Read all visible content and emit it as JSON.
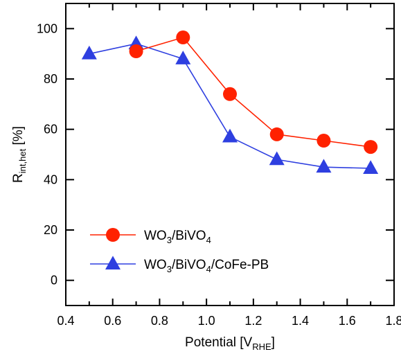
{
  "chart_data": {
    "type": "line",
    "xlabel": "Potential [V",
    "xlabel_sub": "RHE",
    "xlabel_end": "]",
    "ylabel": "R",
    "ylabel_sub": "int,het",
    "ylabel_end": " [%]",
    "xlim": [
      0.4,
      1.8
    ],
    "ylim": [
      -10,
      110
    ],
    "x_ticks": [
      0.4,
      0.6,
      0.8,
      1.0,
      1.2,
      1.4,
      1.6,
      1.8
    ],
    "x_tick_labels": [
      "0.4",
      "0.6",
      "0.8",
      "1.0",
      "1.2",
      "1.4",
      "1.6",
      "1.8"
    ],
    "y_ticks": [
      0,
      20,
      40,
      60,
      80,
      100
    ],
    "y_tick_labels": [
      "0",
      "20",
      "40",
      "60",
      "80",
      "100"
    ],
    "grid": false,
    "legend_position": "bottom-left",
    "series": [
      {
        "name": "WO3/BiVO4",
        "name_parts": [
          {
            "t": "WO",
            "sub": false
          },
          {
            "t": "3",
            "sub": true
          },
          {
            "t": "/BiVO",
            "sub": false
          },
          {
            "t": "4",
            "sub": true
          }
        ],
        "color": "#ff2200",
        "marker": "circle",
        "x": [
          0.7,
          0.9,
          1.1,
          1.3,
          1.5,
          1.7
        ],
        "y": [
          91,
          96.5,
          74,
          58,
          55.5,
          53
        ]
      },
      {
        "name": "WO3/BiVO4/CoFe-PB",
        "name_parts": [
          {
            "t": "WO",
            "sub": false
          },
          {
            "t": "3",
            "sub": true
          },
          {
            "t": "/BiVO",
            "sub": false
          },
          {
            "t": "4",
            "sub": true
          },
          {
            "t": "/CoFe-PB",
            "sub": false
          }
        ],
        "color": "#2e3fe0",
        "marker": "triangle",
        "x": [
          0.5,
          0.7,
          0.9,
          1.1,
          1.3,
          1.5,
          1.7
        ],
        "y": [
          90,
          94,
          88,
          57,
          48,
          45,
          44.5
        ]
      }
    ]
  }
}
